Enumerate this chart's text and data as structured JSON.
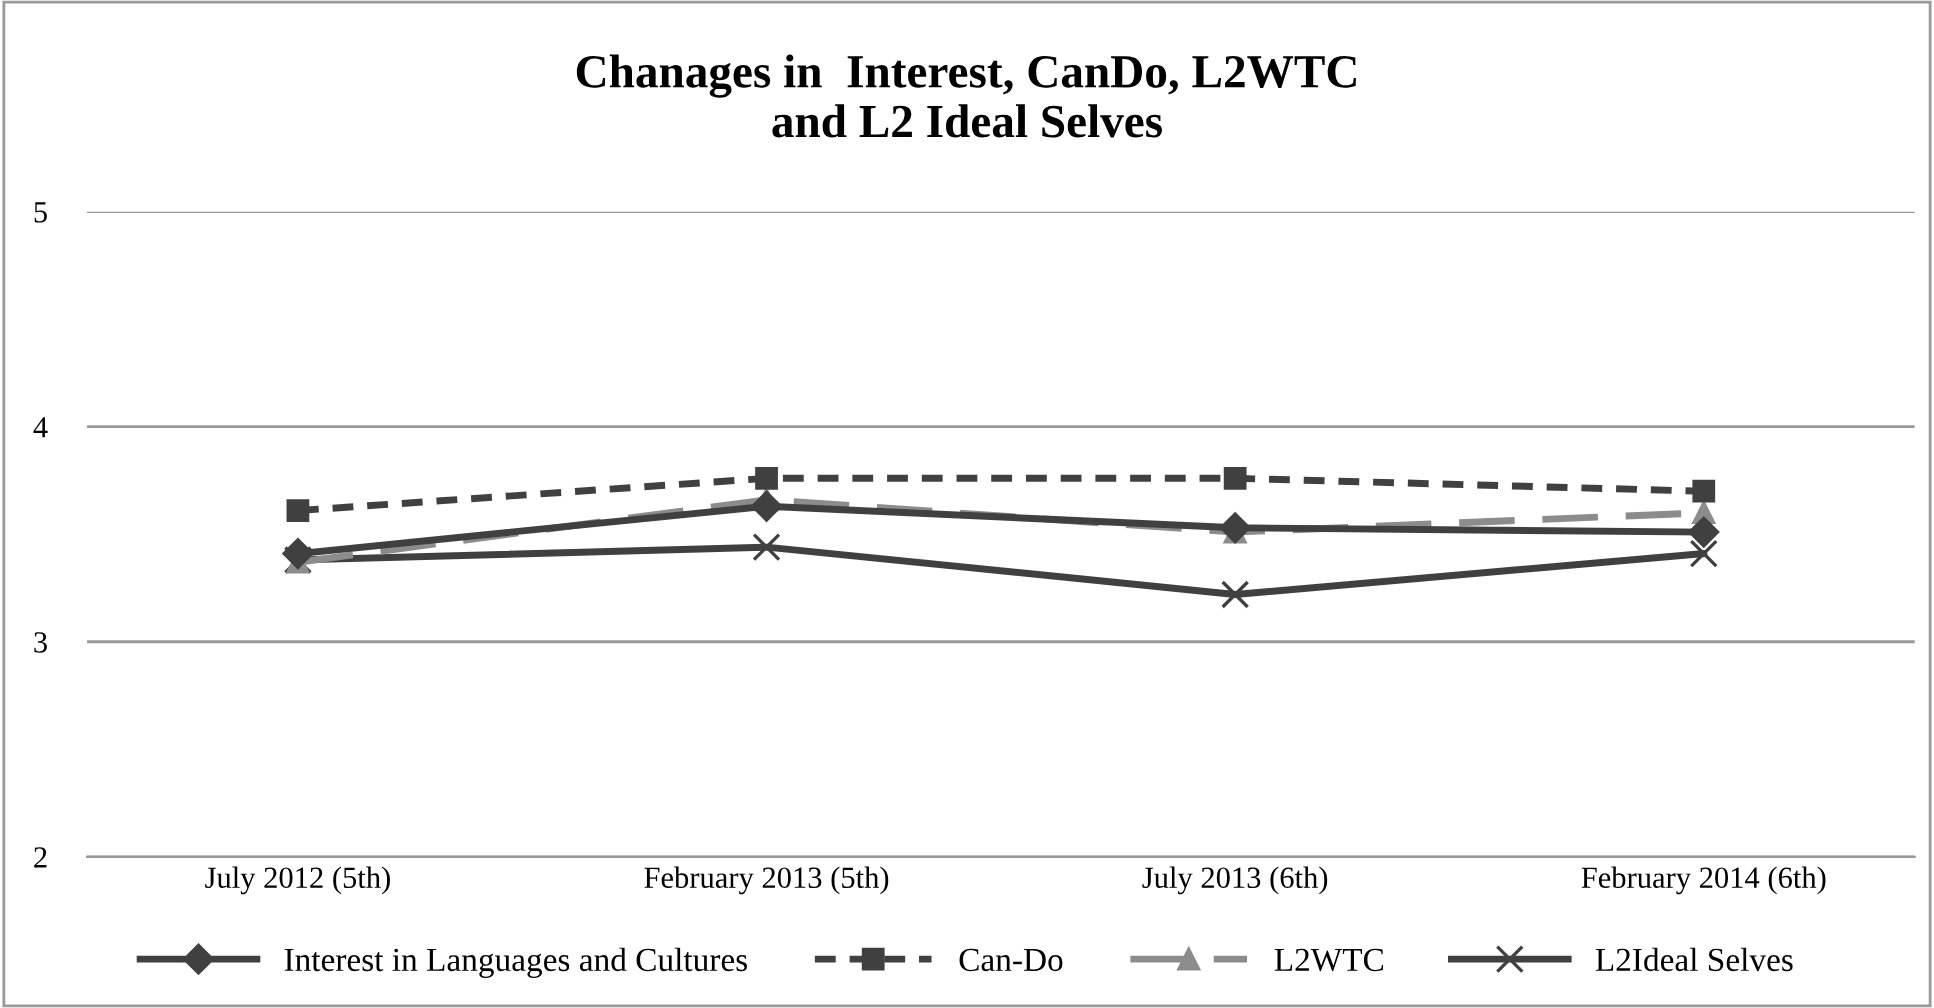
{
  "chart_data": {
    "type": "line",
    "title": "Chanages in  Interest, CanDo, L2WTC\nand L2 Ideal Selves",
    "categories": [
      "July 2012 (5th)",
      "February 2013 (5th)",
      "July 2013 (6th)",
      "February 2014 (6th)"
    ],
    "series": [
      {
        "name": "Interest in Languages and Cultures",
        "color": "#404040",
        "marker": "diamond",
        "line_style": "solid",
        "values": [
          3.41,
          3.63,
          3.53,
          3.51
        ]
      },
      {
        "name": "Can-Do",
        "color": "#404040",
        "marker": "square",
        "line_style": "dotted",
        "values": [
          3.61,
          3.76,
          3.76,
          3.7
        ]
      },
      {
        "name": "L2WTC",
        "color": "#8c8c8c",
        "marker": "triangle",
        "line_style": "dashed",
        "values": [
          3.37,
          3.66,
          3.51,
          3.6
        ]
      },
      {
        "name": "L2Ideal Selves",
        "color": "#404040",
        "marker": "cross",
        "line_style": "solid",
        "values": [
          3.38,
          3.44,
          3.22,
          3.41
        ]
      }
    ],
    "ylim": [
      2,
      5
    ],
    "yticks": [
      2,
      3,
      4,
      5
    ],
    "grid": "y",
    "legend": "bottom"
  }
}
